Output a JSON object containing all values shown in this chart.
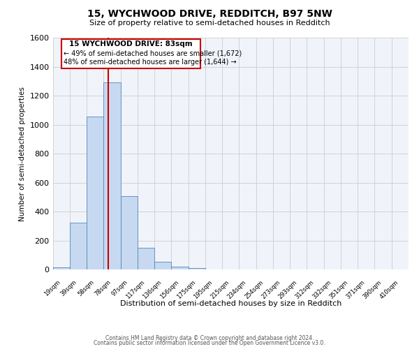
{
  "title_line1": "15, WYCHWOOD DRIVE, REDDITCH, B97 5NW",
  "title_line2": "Size of property relative to semi-detached houses in Redditch",
  "xlabel": "Distribution of semi-detached houses by size in Redditch",
  "ylabel": "Number of semi-detached properties",
  "bin_labels": [
    "19sqm",
    "39sqm",
    "58sqm",
    "78sqm",
    "97sqm",
    "117sqm",
    "136sqm",
    "156sqm",
    "175sqm",
    "195sqm",
    "215sqm",
    "234sqm",
    "254sqm",
    "273sqm",
    "293sqm",
    "312sqm",
    "332sqm",
    "351sqm",
    "371sqm",
    "390sqm",
    "410sqm"
  ],
  "bar_heights": [
    15,
    325,
    1055,
    1290,
    505,
    150,
    55,
    20,
    10,
    0,
    0,
    0,
    0,
    0,
    0,
    0,
    0,
    0,
    0,
    0,
    0
  ],
  "bar_color": "#c6d9f0",
  "bar_edge_color": "#5588bb",
  "property_line_color": "#cc0000",
  "annotation_title": "15 WYCHWOOD DRIVE: 83sqm",
  "annotation_line1": "← 49% of semi-detached houses are smaller (1,672)",
  "annotation_line2": "48% of semi-detached houses are larger (1,644) →",
  "annotation_box_color": "#cc0000",
  "ylim": [
    0,
    1600
  ],
  "yticks": [
    0,
    200,
    400,
    600,
    800,
    1000,
    1200,
    1400,
    1600
  ],
  "footer_line1": "Contains HM Land Registry data © Crown copyright and database right 2024.",
  "footer_line2": "Contains public sector information licensed under the Open Government Licence v3.0.",
  "bg_color": "#ffffff",
  "plot_bg_color": "#f0f4fa",
  "grid_color": "#cccccc"
}
